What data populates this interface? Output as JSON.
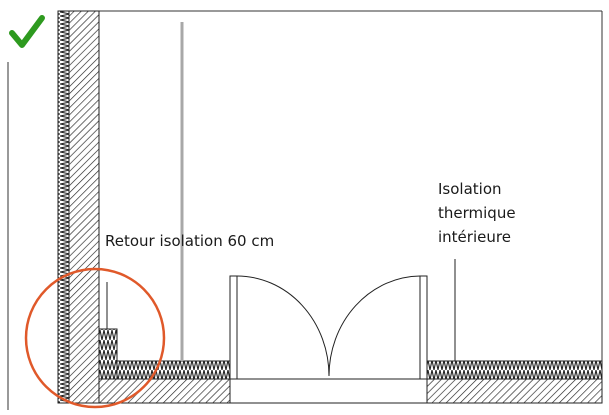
{
  "labels": {
    "return_insulation": "Retour isolation 60 cm",
    "thermal_insulation_line1": "Isolation",
    "thermal_insulation_line2": "thermique",
    "thermal_insulation_line3": "intérieure"
  },
  "icons": {
    "status": "check-icon"
  },
  "colors": {
    "check": "#2e9a1f",
    "highlight_circle": "#e0592a",
    "wall_hatch": "#222222",
    "insulation": "#222222",
    "partition": "#a8a8a8"
  }
}
